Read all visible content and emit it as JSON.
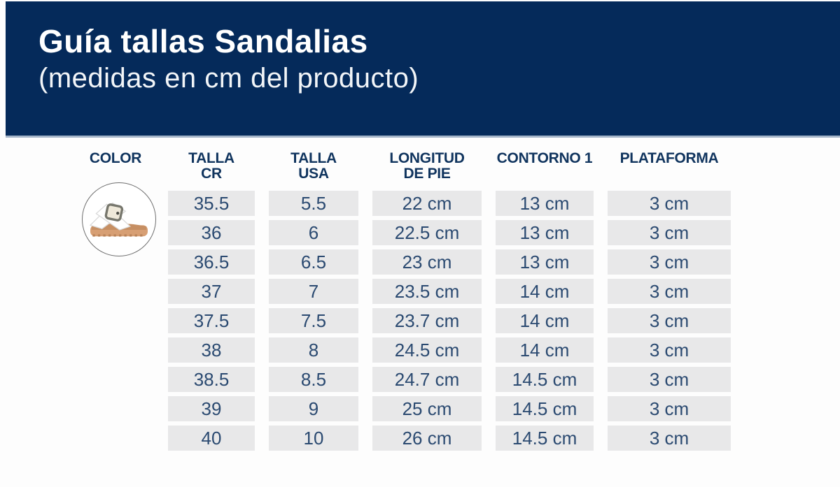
{
  "banner": {
    "title": "Guía tallas Sandalias",
    "subtitle": "(medidas en cm del producto)",
    "bg_color": "#052a5a",
    "underline_color": "#a4b4c8",
    "text_color": "#ffffff"
  },
  "product": {
    "photo": "white-buckle-platform-sandal",
    "sole_color": "#d79f74",
    "strap_color": "#ffffff",
    "buckle_color": "#8a8a80"
  },
  "table": {
    "headers": [
      "COLOR",
      "TALLA\nCR",
      "TALLA\nUSA",
      "LONGITUD\nDE PIE",
      "CONTORNO 1",
      "PLATAFORMA"
    ],
    "rows": [
      [
        "35.5",
        "5.5",
        "22 cm",
        "13 cm",
        "3 cm"
      ],
      [
        "36",
        "6",
        "22.5 cm",
        "13 cm",
        "3 cm"
      ],
      [
        "36.5",
        "6.5",
        "23 cm",
        "13 cm",
        "3 cm"
      ],
      [
        "37",
        "7",
        "23.5 cm",
        "14 cm",
        "3 cm"
      ],
      [
        "37.5",
        "7.5",
        "23.7 cm",
        "14 cm",
        "3 cm"
      ],
      [
        "38",
        "8",
        "24.5 cm",
        "14 cm",
        "3 cm"
      ],
      [
        "38.5",
        "8.5",
        "24.7 cm",
        "14.5 cm",
        "3 cm"
      ],
      [
        "39",
        "9",
        "25 cm",
        "14.5 cm",
        "3 cm"
      ],
      [
        "40",
        "10",
        "26 cm",
        "14.5 cm",
        "3 cm"
      ]
    ],
    "header_color": "#10345e",
    "cell_bg": "#e8e8e9",
    "cell_text_color": "#2b4a71"
  }
}
